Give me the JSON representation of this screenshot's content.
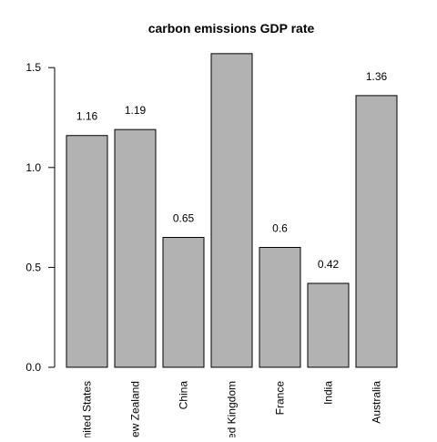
{
  "chart_data": {
    "type": "bar",
    "title": "carbon emissions GDP rate",
    "xlabel": "",
    "ylabel": "",
    "categories": [
      "United States",
      "New Zealand",
      "China",
      "United Kingdom",
      "France",
      "India",
      "Australia"
    ],
    "values": [
      1.16,
      1.19,
      0.65,
      1.57,
      0.6,
      0.42,
      1.36
    ],
    "data_labels": [
      "1.16",
      "1.19",
      "0.65",
      "",
      "0.6",
      "0.42",
      "1.36"
    ],
    "ylim": [
      0,
      1.57
    ],
    "y_ticks": [
      0,
      0.5,
      1.0,
      1.5
    ],
    "y_tick_labels": [
      "0.0",
      "0.5",
      "1.0",
      "1.5"
    ],
    "bar_color": "#b2b2b2",
    "grid": false,
    "legend": "none"
  }
}
